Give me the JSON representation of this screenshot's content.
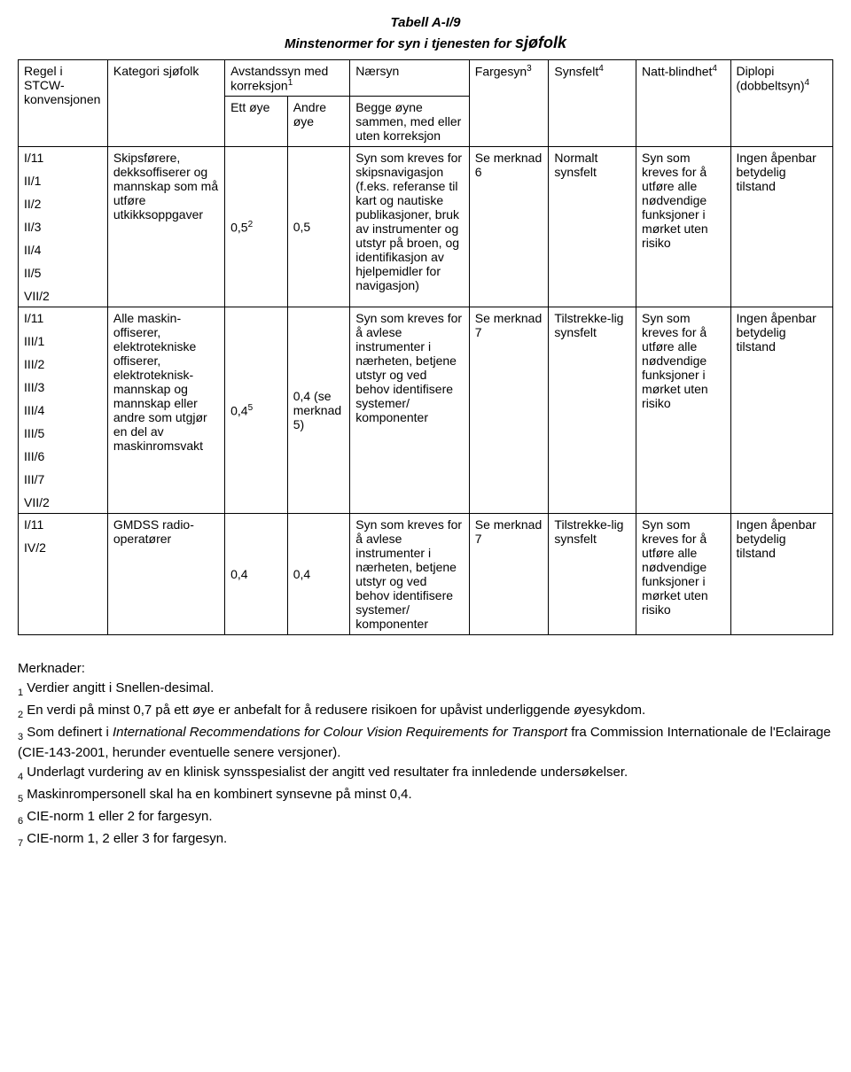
{
  "title": {
    "line1": "Tabell A-I/9",
    "line2_a": "Minstenormer for syn i tjenesten for ",
    "line2_b": "sjøfolk"
  },
  "columns": {
    "c1": "Regel i STCW-konvensjonen",
    "c2": "Kategori sjøfolk",
    "c3_top": "Avstandssyn med korreksjon",
    "c3_sup": "1",
    "c3a": "Ett øye",
    "c3b": "Andre øye",
    "c4": "Nærsyn",
    "c4_sub": "Begge øyne sammen, med eller uten korreksjon",
    "c5": "Fargesyn",
    "c5_sup": "3",
    "c6": "Synsfelt",
    "c6_sup": "4",
    "c7": "Natt-blindhet",
    "c7_sup": "4",
    "c8": "Diplopi (dobbeltsyn)",
    "c8_sup": "4"
  },
  "rows": [
    {
      "rules": [
        "I/11",
        "II/1",
        "II/2",
        "II/3",
        "II/4",
        "II/5",
        "VII/2"
      ],
      "category": "Skipsførere, dekksoffiserer og mannskap som må utføre utkikksoppgaver",
      "eye1": "0,5",
      "eye1_sup": "2",
      "eye2": "0,5",
      "near": "Syn som kreves for skipsnavigasjon (f.eks. referanse til kart og nautiske publikasjoner, bruk av instrumenter og utstyr på broen, og identifikasjon av hjelpemidler for navigasjon)",
      "colour": "Se merknad 6",
      "field": "Normalt synsfelt",
      "night": "Syn som kreves for å utføre alle nødvendige funksjoner i mørket uten risiko",
      "diplopia": "Ingen åpenbar betydelig tilstand"
    },
    {
      "rules": [
        "I/11",
        "III/1",
        "III/2",
        "III/3",
        "III/4",
        "III/5",
        "III/6",
        "III/7",
        "VII/2"
      ],
      "category": "Alle maskin-offiserer, elektrotekniske offiserer, elektroteknisk-mannskap og mannskap eller andre som utgjør en del av maskinromsvakt",
      "eye1": "0,4",
      "eye1_sup": "5",
      "eye2": "0,4 (se merknad 5)",
      "near": "Syn som kreves for å avlese instrumenter i nærheten, betjene utstyr og ved behov identifisere systemer/ komponenter",
      "colour": "Se merknad 7",
      "field": "Tilstrekke-lig synsfelt",
      "night": "Syn som kreves for å utføre alle nødvendige funksjoner i mørket uten risiko",
      "diplopia": "Ingen åpenbar betydelig tilstand"
    },
    {
      "rules": [
        "I/11",
        "IV/2"
      ],
      "category": "GMDSS radio-operatører",
      "eye1": "0,4",
      "eye1_sup": "",
      "eye2": "0,4",
      "near": "Syn som kreves for å avlese instrumenter i nærheten, betjene utstyr og ved behov identifisere systemer/ komponenter",
      "colour": "Se merknad 7",
      "field": "Tilstrekke-lig synsfelt",
      "night": "Syn som kreves for å utføre alle nødvendige funksjoner i mørket uten risiko",
      "diplopia": "Ingen åpenbar betydelig tilstand"
    }
  ],
  "notes": {
    "header": "Merknader:",
    "n1": "Verdier angitt i Snellen-desimal.",
    "n2": "En verdi på minst 0,7 på ett øye er anbefalt for å redusere risikoen for upåvist underliggende øyesykdom.",
    "n3_a": "Som definert i ",
    "n3_b": "International Recommendations for Colour Vision Requirements for Transport",
    "n3_c": " fra Commission Internationale de l'Eclairage (CIE-143-2001, herunder eventuelle senere versjoner).",
    "n4": "Underlagt vurdering av en klinisk synsspesialist der angitt ved resultater fra innledende undersøkelser.",
    "n5": "Maskinrompersonell skal ha en kombinert synsevne på minst 0,4.",
    "n6": "CIE-norm 1 eller 2 for fargesyn.",
    "n7": "CIE-norm 1, 2 eller 3 for fargesyn."
  }
}
